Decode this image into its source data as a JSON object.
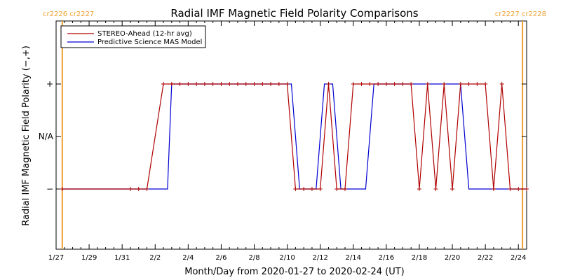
{
  "chart_data": {
    "type": "line",
    "title": "Radial IMF Magnetic Field Polarity Comparisons",
    "xlabel": "Month/Day from 2020-01-27 to 2020-02-24 (UT)",
    "ylabel": "Radial IMF Magnetic Field Polarity (−,+)",
    "xlim": [
      "2020-01-27",
      "2020-02-24 12:00"
    ],
    "y_levels": [
      "−",
      "N/A",
      "+"
    ],
    "x_tick_labels": [
      "1/27",
      "1/29",
      "1/31",
      "2/2",
      "2/4",
      "2/6",
      "2/8",
      "2/10",
      "2/12",
      "2/14",
      "2/16",
      "2/18",
      "2/20",
      "2/22",
      "2/24"
    ],
    "y_tick_labels": [
      "+",
      "N/A",
      "−"
    ],
    "carrington_markers": [
      {
        "date": "2020-01-27 09:00",
        "label": "cr2226 cr2227"
      },
      {
        "date": "2020-02-24 06:00",
        "label": "cr2227 cr2228"
      }
    ],
    "marker_color": "#f0a030",
    "legend_position": "top-left",
    "series": [
      {
        "name": "STEREO-Ahead (12-hr avg)",
        "color": "#b00000",
        "markers": true,
        "points": [
          [
            "2020-01-27 09:00",
            "−"
          ],
          [
            "2020-01-31 12:00",
            "−"
          ],
          [
            "2020-02-01 00:00",
            "−"
          ],
          [
            "2020-02-01 12:00",
            "−"
          ],
          [
            "2020-02-02 12:00",
            "+"
          ],
          [
            "2020-02-03 00:00",
            "+"
          ],
          [
            "2020-02-03 12:00",
            "+"
          ],
          [
            "2020-02-04 00:00",
            "+"
          ],
          [
            "2020-02-04 12:00",
            "+"
          ],
          [
            "2020-02-05 00:00",
            "+"
          ],
          [
            "2020-02-05 12:00",
            "+"
          ],
          [
            "2020-02-06 00:00",
            "+"
          ],
          [
            "2020-02-06 12:00",
            "+"
          ],
          [
            "2020-02-07 00:00",
            "+"
          ],
          [
            "2020-02-07 12:00",
            "+"
          ],
          [
            "2020-02-08 00:00",
            "+"
          ],
          [
            "2020-02-08 12:00",
            "+"
          ],
          [
            "2020-02-09 00:00",
            "+"
          ],
          [
            "2020-02-09 12:00",
            "+"
          ],
          [
            "2020-02-10 00:00",
            "+"
          ],
          [
            "2020-02-10 12:00",
            "−"
          ],
          [
            "2020-02-11 00:00",
            "−"
          ],
          [
            "2020-02-11 12:00",
            "−"
          ],
          [
            "2020-02-12 00:00",
            "−"
          ],
          [
            "2020-02-12 12:00",
            "+"
          ],
          [
            "2020-02-13 00:00",
            "−"
          ],
          [
            "2020-02-13 12:00",
            "−"
          ],
          [
            "2020-02-14 00:00",
            "+"
          ],
          [
            "2020-02-14 12:00",
            "+"
          ],
          [
            "2020-02-15 00:00",
            "+"
          ],
          [
            "2020-02-15 12:00",
            "+"
          ],
          [
            "2020-02-16 00:00",
            "+"
          ],
          [
            "2020-02-16 12:00",
            "+"
          ],
          [
            "2020-02-17 00:00",
            "+"
          ],
          [
            "2020-02-17 12:00",
            "+"
          ],
          [
            "2020-02-18 00:00",
            "−"
          ],
          [
            "2020-02-18 12:00",
            "+"
          ],
          [
            "2020-02-19 00:00",
            "−"
          ],
          [
            "2020-02-19 12:00",
            "+"
          ],
          [
            "2020-02-20 00:00",
            "−"
          ],
          [
            "2020-02-20 12:00",
            "+"
          ],
          [
            "2020-02-21 00:00",
            "+"
          ],
          [
            "2020-02-21 12:00",
            "+"
          ],
          [
            "2020-02-22 00:00",
            "+"
          ],
          [
            "2020-02-22 12:00",
            "−"
          ],
          [
            "2020-02-23 00:00",
            "+"
          ],
          [
            "2020-02-23 12:00",
            "−"
          ],
          [
            "2020-02-24 00:00",
            "−"
          ],
          [
            "2020-02-24 12:00",
            "−"
          ]
        ]
      },
      {
        "name": "Predictive Science MAS Model",
        "color": "#0000d0",
        "markers": false,
        "points": [
          [
            "2020-01-27 09:00",
            "−"
          ],
          [
            "2020-02-02 18:00",
            "−"
          ],
          [
            "2020-02-03 00:00",
            "+"
          ],
          [
            "2020-02-10 06:00",
            "+"
          ],
          [
            "2020-02-10 18:00",
            "−"
          ],
          [
            "2020-02-11 18:00",
            "−"
          ],
          [
            "2020-02-12 06:00",
            "+"
          ],
          [
            "2020-02-12 18:00",
            "+"
          ],
          [
            "2020-02-13 06:00",
            "−"
          ],
          [
            "2020-02-14 18:00",
            "−"
          ],
          [
            "2020-02-15 06:00",
            "+"
          ],
          [
            "2020-02-20 12:00",
            "+"
          ],
          [
            "2020-02-21 00:00",
            "−"
          ],
          [
            "2020-02-24 12:00",
            "−"
          ]
        ]
      }
    ]
  }
}
